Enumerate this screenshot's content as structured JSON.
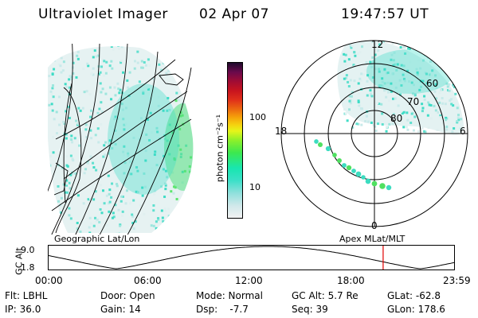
{
  "header": {
    "instrument": "Ultraviolet Imager",
    "date": "02 Apr 07",
    "time": "19:47:57 UT"
  },
  "colorbar": {
    "label": "photon cm⁻²s⁻¹",
    "ticks": [
      "100",
      "10"
    ],
    "colors": [
      "#f2f2f2",
      "#3ce0c8",
      "#3ce84f",
      "#e6f51a",
      "#f5a00a",
      "#e0301a",
      "#6a0a4c",
      "#1e0a2c"
    ]
  },
  "left_panel": {
    "caption": "Geographic Lat/Lon"
  },
  "polar_panel": {
    "caption": "Apex MLat/MLT",
    "mlt_labels": {
      "top": "12",
      "left": "18",
      "right": "6",
      "bottom": "0"
    },
    "lat_labels": [
      "60",
      "70",
      "80"
    ]
  },
  "timeline": {
    "ylabel": "GC Alt",
    "yticks": [
      "9.0",
      "1.8"
    ],
    "xticks": [
      "00:00",
      "06:00",
      "12:00",
      "18:00",
      "23:59"
    ],
    "marker_time_hours": 19.8
  },
  "status": {
    "row1": [
      "Flt: LBHL",
      "Door: Open",
      "Mode: Normal",
      "GC Alt: 5.7 Re",
      "GLat: -62.8"
    ],
    "row2": [
      "IP: 36.0",
      "Gain: 14",
      "Dsp:    -7.7",
      "Seq: 39",
      "GLon: 178.6"
    ]
  }
}
